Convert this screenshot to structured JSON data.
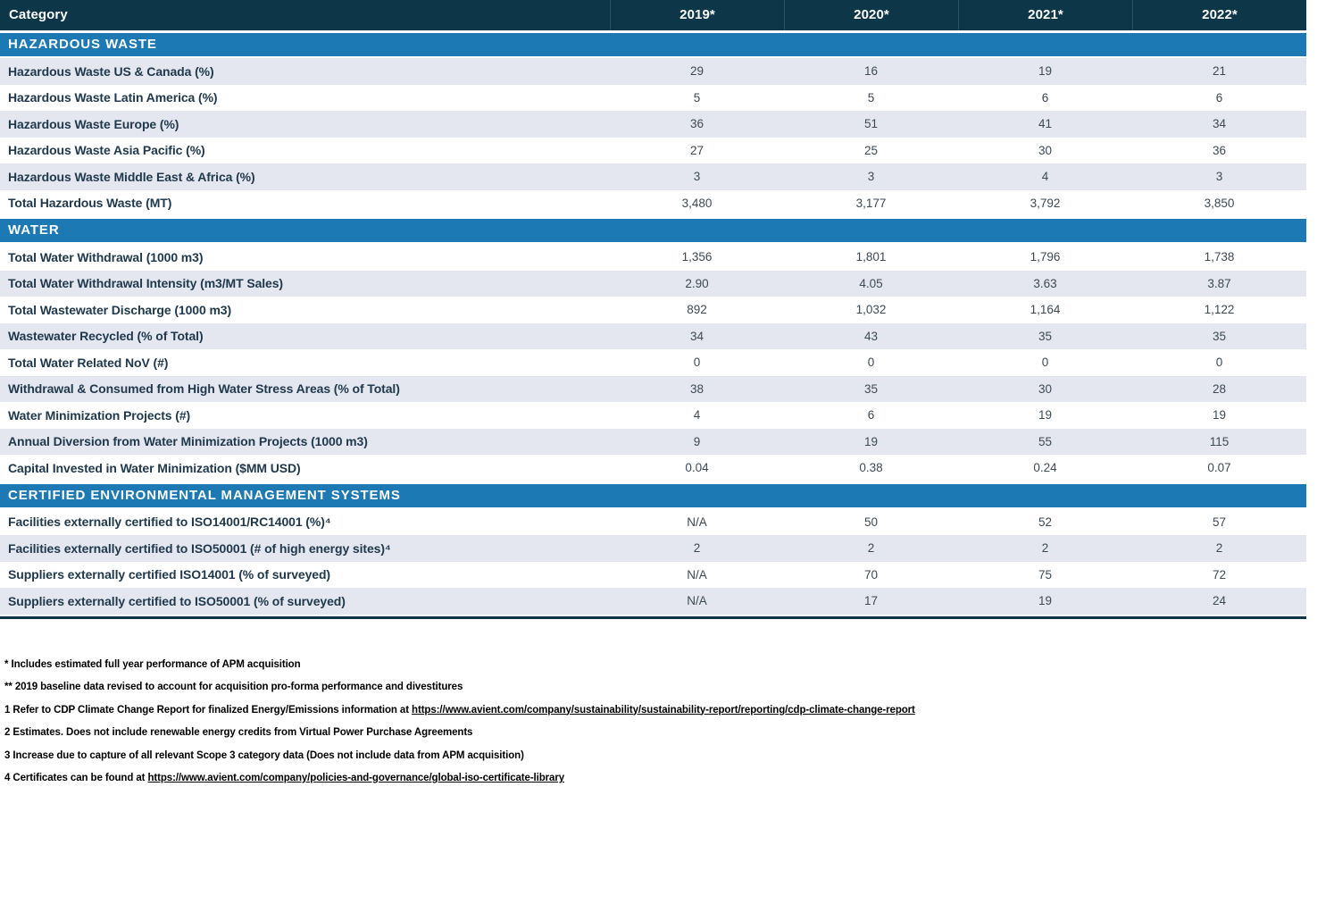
{
  "table": {
    "columns": [
      "Category",
      "2019*",
      "2020*",
      "2021*",
      "2022*"
    ],
    "sections": [
      {
        "title": "HAZARDOUS WASTE",
        "first_row_shaded": true,
        "rows": [
          {
            "label": "Hazardous Waste US & Canada (%)",
            "values": [
              "29",
              "16",
              "19",
              "21"
            ]
          },
          {
            "label": "Hazardous Waste Latin America (%)",
            "values": [
              "5",
              "5",
              "6",
              "6"
            ]
          },
          {
            "label": "Hazardous Waste Europe (%)",
            "values": [
              "36",
              "51",
              "41",
              "34"
            ]
          },
          {
            "label": "Hazardous Waste Asia Pacific (%)",
            "values": [
              "27",
              "25",
              "30",
              "36"
            ]
          },
          {
            "label": "Hazardous Waste Middle East & Africa (%)",
            "values": [
              "3",
              "3",
              "4",
              "3"
            ]
          },
          {
            "label": "Total Hazardous Waste (MT)",
            "values": [
              "3,480",
              "3,177",
              "3,792",
              "3,850"
            ]
          }
        ]
      },
      {
        "title": "WATER",
        "first_row_shaded": false,
        "rows": [
          {
            "label": "Total Water Withdrawal (1000 m3)",
            "values": [
              "1,356",
              "1,801",
              "1,796",
              "1,738"
            ]
          },
          {
            "label": "Total Water Withdrawal Intensity (m3/MT Sales)",
            "values": [
              "2.90",
              "4.05",
              "3.63",
              "3.87"
            ]
          },
          {
            "label": "Total Wastewater Discharge (1000 m3)",
            "values": [
              "892",
              "1,032",
              "1,164",
              "1,122"
            ]
          },
          {
            "label": "Wastewater Recycled (% of Total)",
            "values": [
              "34",
              "43",
              "35",
              "35"
            ]
          },
          {
            "label": "Total Water Related NoV (#)",
            "values": [
              "0",
              "0",
              "0",
              "0"
            ]
          },
          {
            "label": "Withdrawal & Consumed from High Water Stress Areas (% of Total)",
            "values": [
              "38",
              "35",
              "30",
              "28"
            ]
          },
          {
            "label": "Water Minimization Projects (#)",
            "values": [
              "4",
              "6",
              "19",
              "19"
            ]
          },
          {
            "label": "Annual Diversion from Water Minimization Projects (1000 m3)",
            "values": [
              "9",
              "19",
              "55",
              "115"
            ]
          },
          {
            "label": "Capital Invested in Water Minimization ($MM USD)",
            "values": [
              "0.04",
              "0.38",
              "0.24",
              "0.07"
            ]
          }
        ]
      },
      {
        "title": "CERTIFIED ENVIRONMENTAL MANAGEMENT SYSTEMS",
        "first_row_shaded": false,
        "rows": [
          {
            "label": "Facilities externally certified to ISO14001/RC14001 (%)⁴",
            "values": [
              "N/A",
              "50",
              "52",
              "57"
            ]
          },
          {
            "label": "Facilities externally certified to ISO50001 (# of high energy sites)⁴",
            "values": [
              "2",
              "2",
              "2",
              "2"
            ]
          },
          {
            "label": "Suppliers externally certified ISO14001 (% of surveyed)",
            "values": [
              "N/A",
              "70",
              "75",
              "72"
            ]
          },
          {
            "label": "Suppliers externally certified to ISO50001 (% of surveyed)",
            "values": [
              "N/A",
              "17",
              "19",
              "24"
            ]
          }
        ]
      }
    ]
  },
  "footnotes": [
    {
      "text": "* Includes estimated full year performance of APM acquisition",
      "link": ""
    },
    {
      "text": "** 2019 baseline data revised to account for acquisition pro-forma performance and divestitures",
      "link": ""
    },
    {
      "text": "1 Refer to CDP Climate Change Report for finalized Energy/Emissions information at ",
      "link": "https://www.avient.com/company/sustainability/sustainability-report/reporting/cdp-climate-change-report"
    },
    {
      "text": "2 Estimates. Does not include renewable energy credits from Virtual Power Purchase Agreements",
      "link": ""
    },
    {
      "text": "3 Increase due to capture of all relevant Scope 3 category data (Does not include data from APM acquisition)",
      "link": ""
    },
    {
      "text": "4 Certificates can be found at ",
      "link": "https://www.avient.com/company/policies-and-governance/global-iso-certificate-library"
    }
  ],
  "colors": {
    "header_bg": "#0d3649",
    "section_bg": "#1c79b3",
    "row_shaded_bg": "#e4e7f0",
    "label_text": "#21394c",
    "value_text": "#3d4a54"
  }
}
